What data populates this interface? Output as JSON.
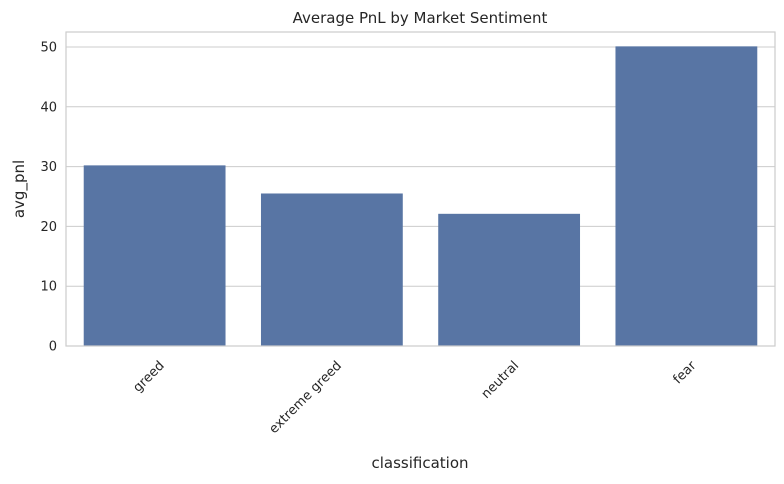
{
  "chart_data": {
    "type": "bar",
    "title": "Average PnL by Market Sentiment",
    "xlabel": "classification",
    "ylabel": "avg_pnl",
    "categories": [
      "greed",
      "extreme greed",
      "neutral",
      "fear"
    ],
    "values": [
      30.2,
      25.5,
      22.1,
      50.1
    ],
    "ylim": [
      0,
      52.5
    ],
    "yticks": [
      0,
      10,
      20,
      30,
      40,
      50
    ],
    "grid": "horizontal",
    "xtick_rotation_deg": 45,
    "bar_color": "#5875a4",
    "grid_color": "#cccccc"
  }
}
